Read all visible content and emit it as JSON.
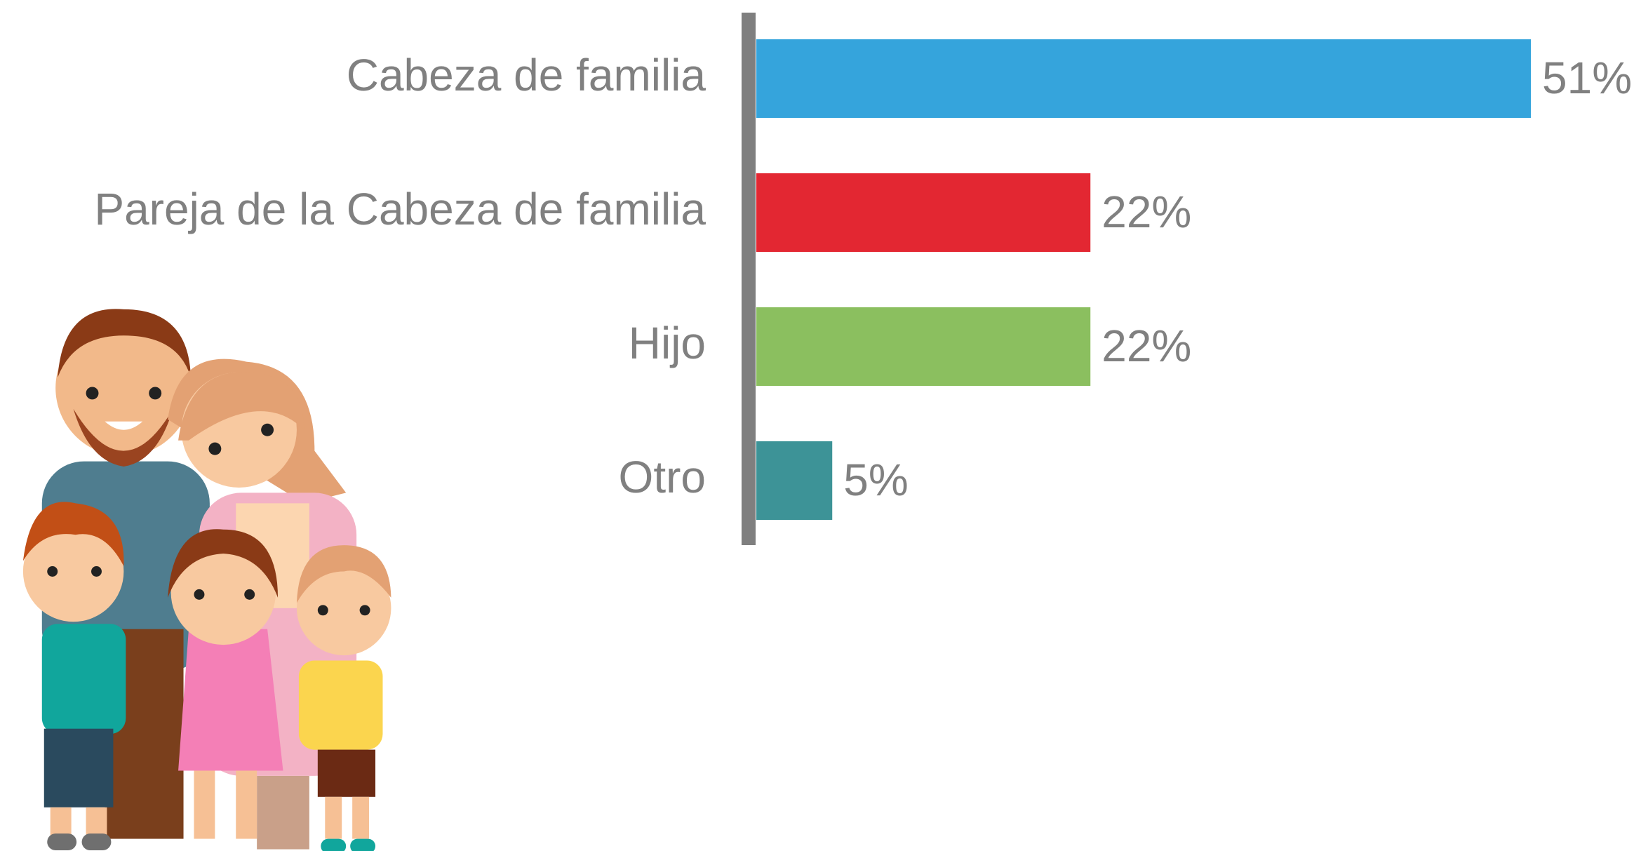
{
  "chart_data": {
    "type": "barh",
    "categories": [
      "Cabeza de familia",
      "Pareja de la Cabeza de familia",
      "Hijo",
      "Otro"
    ],
    "values": [
      51,
      22,
      22,
      5
    ],
    "value_labels": [
      "51%",
      "22%",
      "22%",
      "5%"
    ],
    "colors": [
      "#35a4dc",
      "#e32732",
      "#8bbf5f",
      "#3d9397"
    ]
  }
}
